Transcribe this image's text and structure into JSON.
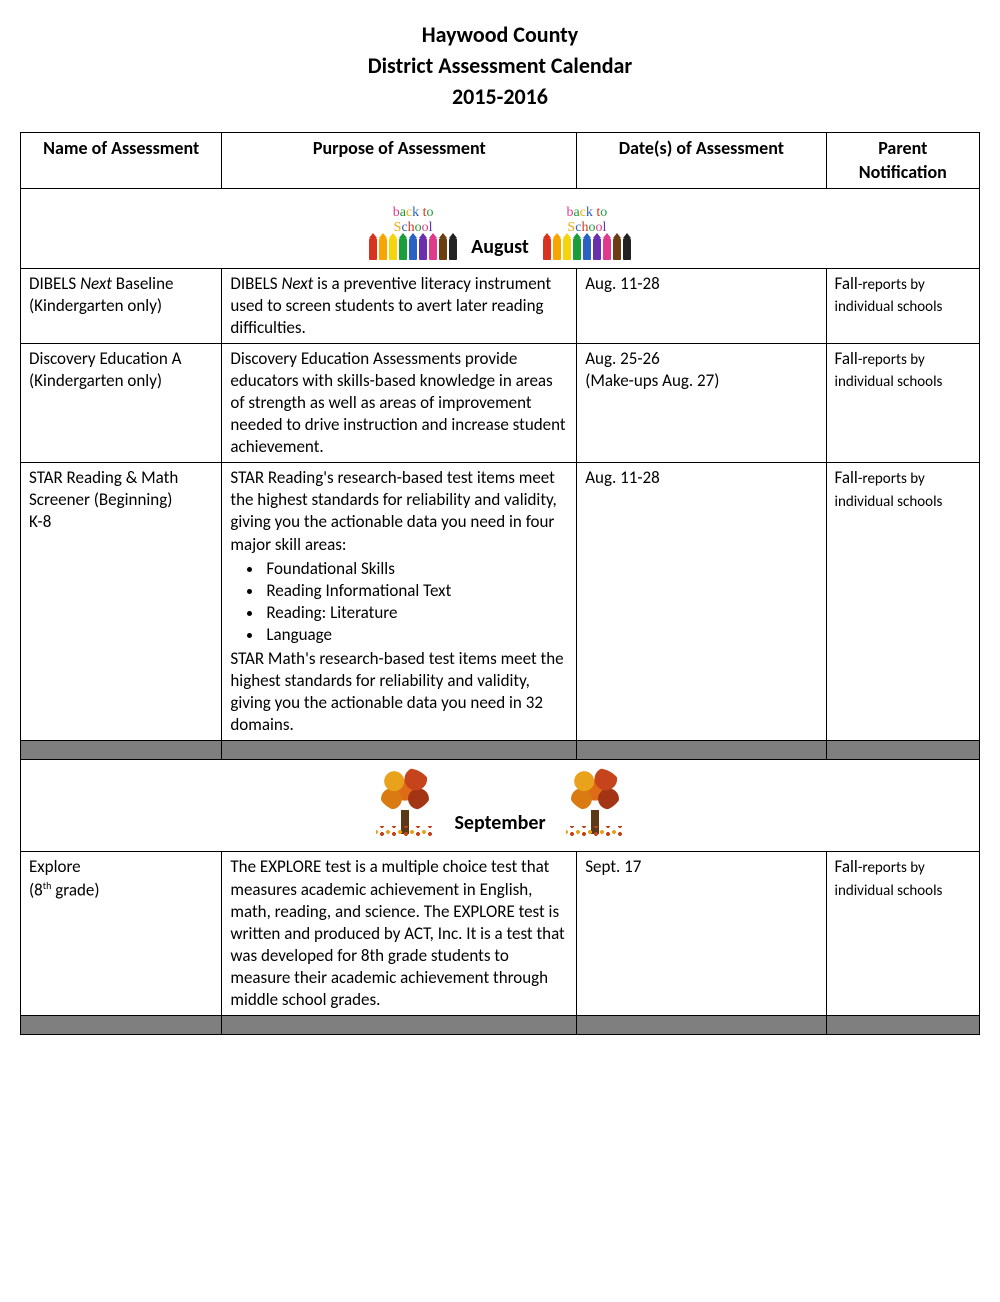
{
  "header": {
    "line1": "Haywood County",
    "line2": "District Assessment Calendar",
    "line3": "2015-2016"
  },
  "columns": {
    "c1": "Name of Assessment",
    "c2": "Purpose of Assessment",
    "c3": "Date(s) of Assessment",
    "c4": "Parent Notification"
  },
  "months": {
    "august": "August",
    "september": "September"
  },
  "decor": {
    "back_to_school_l1": "back to",
    "back_to_school_l2": "School"
  },
  "rows": {
    "r1": {
      "name_l1_a": "DIBELS ",
      "name_l1_b_italic": "Next",
      "name_l1_c": " Baseline",
      "name_l2": "(Kindergarten only)",
      "purpose_a": "DIBELS ",
      "purpose_b_italic": "Next",
      "purpose_c": " is a preventive literacy instrument used to screen students to avert later reading difficulties.",
      "dates": "Aug. 11-28",
      "parent_a": "Fall",
      "parent_b": "-reports by individual schools"
    },
    "r2": {
      "name_l1": "Discovery Education A",
      "name_l2": "(Kindergarten only)",
      "purpose": "Discovery Education Assessments provide educators with skills-based knowledge in areas of strength as well as areas of improvement needed to drive instruction and increase student achievement.",
      "dates_l1": "Aug. 25-26",
      "dates_l2": "(Make-ups Aug. 27)",
      "parent_a": "Fall",
      "parent_b": "-reports by individual schools"
    },
    "r3": {
      "name_l1": "STAR Reading & Math",
      "name_l2": "Screener (Beginning)",
      "name_l3": "K-8",
      "purpose_p1": "STAR Reading's research-based test items meet the highest standards for reliability and validity, giving you the actionable data you need in four major skill areas:",
      "bullets": {
        "b1": "Foundational Skills",
        "b2": "Reading Informational Text",
        "b3": "Reading: Literature",
        "b4": "Language"
      },
      "purpose_p2": "STAR Math's research-based test items meet the highest standards for reliability and validity, giving you the actionable data you need in 32 domains.",
      "dates": "Aug. 11-28",
      "parent_a": "Fall",
      "parent_b": "-reports by individual schools"
    },
    "r4": {
      "name_l1": "Explore",
      "name_l2a": "(8",
      "name_l2sup": "th",
      "name_l2b": " grade)",
      "purpose": "The EXPLORE test is a multiple choice test that measures academic achievement in English, math, reading, and science. The EXPLORE test is written and produced by ACT, Inc. It is a test that was developed for 8th grade students to measure their academic achievement through middle school grades.",
      "dates": "Sept. 17",
      "parent_a": "Fall",
      "parent_b": "-reports by individual schools"
    }
  }
}
